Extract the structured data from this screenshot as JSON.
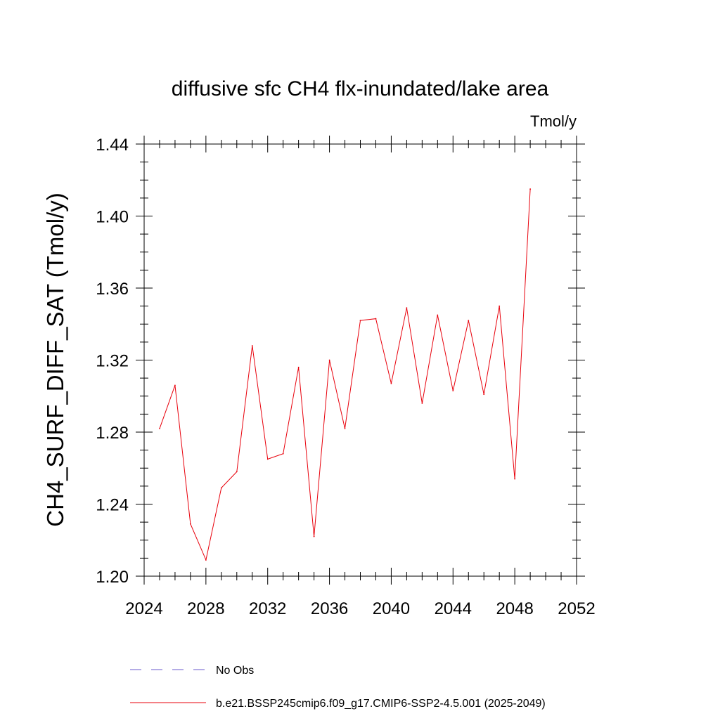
{
  "chart_data": {
    "type": "line",
    "title": "diffusive sfc CH4 flx-inundated/lake area",
    "units_label": "Tmol/y",
    "ylabel": "CH4_SURF_DIFF_SAT  (Tmol/y)",
    "xlabel": "",
    "xlim": [
      2024,
      2052
    ],
    "ylim": [
      1.2,
      1.44
    ],
    "x_ticks": [
      "2024",
      "2028",
      "2032",
      "2036",
      "2040",
      "2044",
      "2048",
      "2052"
    ],
    "y_ticks": [
      "1.20",
      "1.24",
      "1.28",
      "1.32",
      "1.36",
      "1.40",
      "1.44"
    ],
    "x_tick_values": [
      2024,
      2028,
      2032,
      2036,
      2040,
      2044,
      2048,
      2052
    ],
    "y_tick_values": [
      1.2,
      1.24,
      1.28,
      1.32,
      1.36,
      1.4,
      1.44
    ],
    "x_minor_step": 1,
    "y_minor_step": 0.01,
    "grid": false,
    "legend_position": "bottom",
    "series": [
      {
        "name": "b.e21.BSSP245cmip6.f09_g17.CMIP6-SSP2-4.5.001 (2025-2049)",
        "color": "#e8000b",
        "style": "solid",
        "x": [
          2025,
          2026,
          2027,
          2028,
          2029,
          2030,
          2031,
          2032,
          2033,
          2034,
          2035,
          2036,
          2037,
          2038,
          2039,
          2040,
          2041,
          2042,
          2043,
          2044,
          2045,
          2046,
          2047,
          2048,
          2049
        ],
        "values": [
          1.282,
          1.306,
          1.229,
          1.209,
          1.249,
          1.258,
          1.328,
          1.265,
          1.268,
          1.316,
          1.222,
          1.32,
          1.282,
          1.342,
          1.343,
          1.307,
          1.349,
          1.296,
          1.345,
          1.303,
          1.342,
          1.301,
          1.35,
          1.254,
          1.415
        ]
      }
    ],
    "legend": [
      {
        "label": "No Obs",
        "color": "#6a5acd",
        "style": "dashed"
      },
      {
        "label": "b.e21.BSSP245cmip6.f09_g17.CMIP6-SSP2-4.5.001 (2025-2049)",
        "color": "#e8000b",
        "style": "solid"
      }
    ]
  }
}
